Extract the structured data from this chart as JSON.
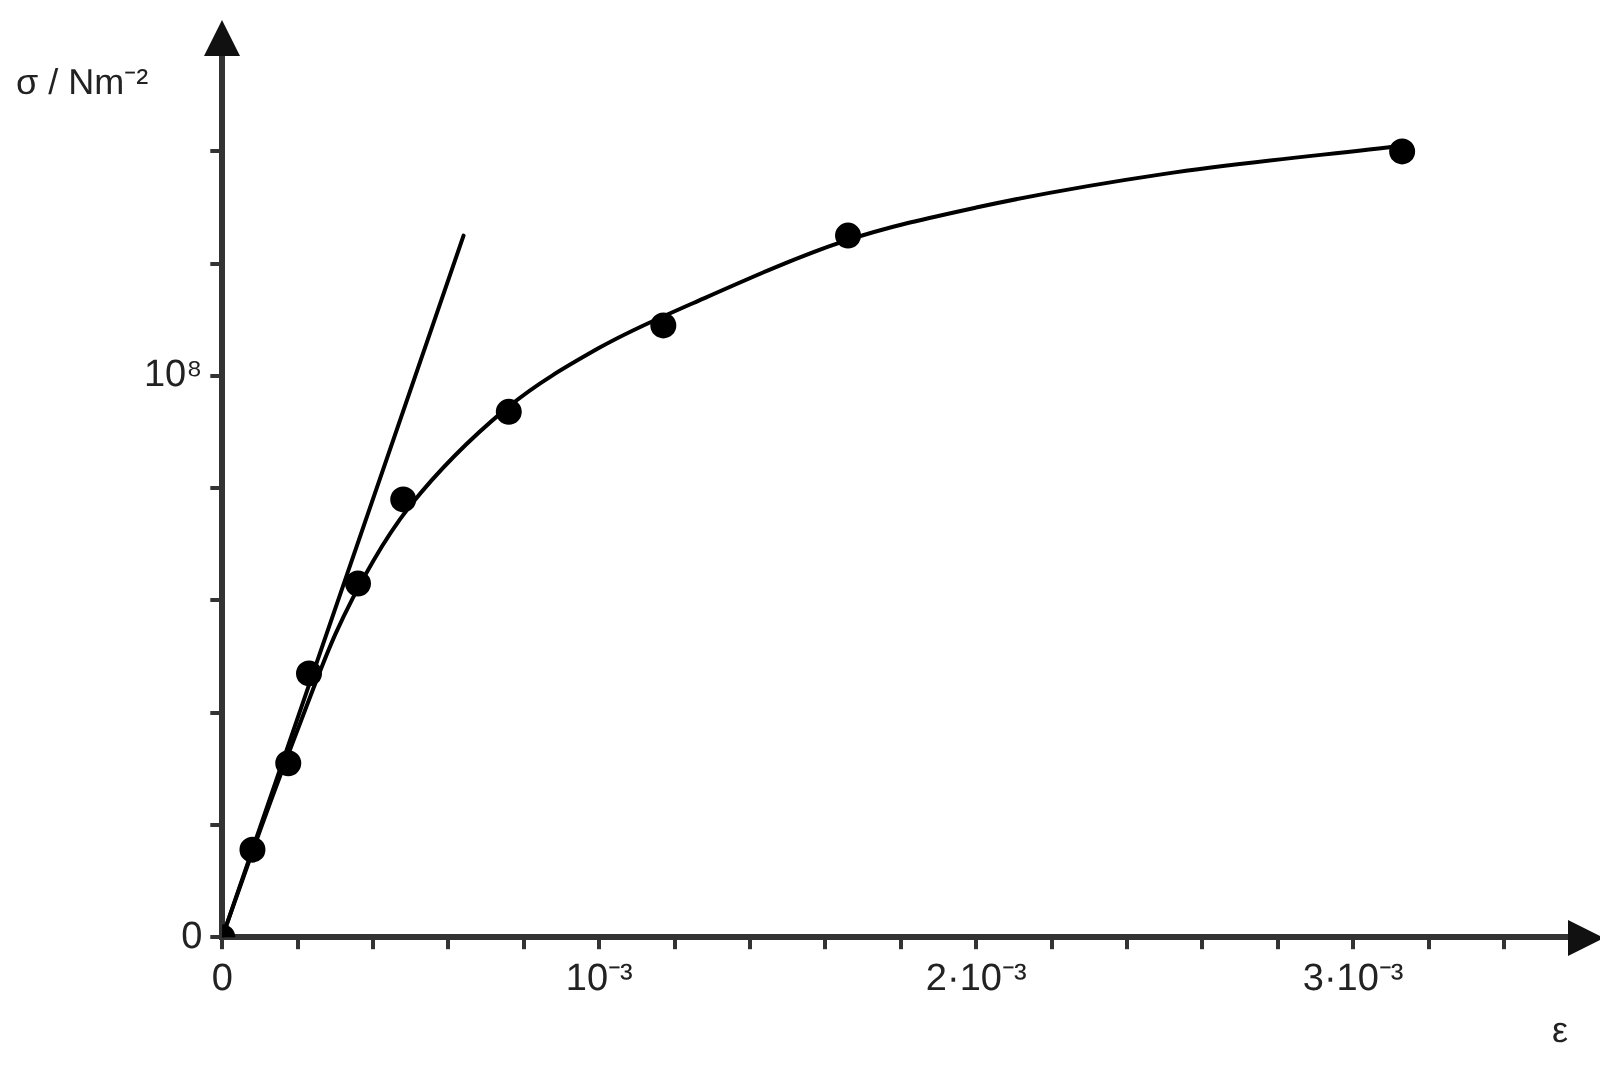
{
  "chart_data": {
    "type": "scatter",
    "xlabel": "ε",
    "ylabel": "σ / Nm⁻²",
    "xlim": [
      0,
      0.00357
    ],
    "ylim": [
      0,
      157000000
    ],
    "xticks": [
      0,
      {
        "value": 0.0002,
        "label": null
      },
      {
        "value": 0.0004,
        "label": null
      },
      {
        "value": 0.0006,
        "label": null
      },
      {
        "value": 0.0008,
        "label": null
      },
      {
        "value": 0.001,
        "label": "10⁻³"
      },
      {
        "value": 0.0012,
        "label": null
      },
      {
        "value": 0.0014,
        "label": null
      },
      {
        "value": 0.0016,
        "label": null
      },
      {
        "value": 0.0018,
        "label": null
      },
      {
        "value": 0.002,
        "label": "2·10⁻³"
      },
      {
        "value": 0.0022,
        "label": null
      },
      {
        "value": 0.0024,
        "label": null
      },
      {
        "value": 0.0026,
        "label": null
      },
      {
        "value": 0.0028,
        "label": null
      },
      {
        "value": 0.003,
        "label": "3·10⁻³"
      },
      {
        "value": 0.0032,
        "label": null
      },
      {
        "value": 0.0034,
        "label": null
      }
    ],
    "yticks": [
      0,
      {
        "value": 20000000,
        "label": null
      },
      {
        "value": 40000000,
        "label": null
      },
      {
        "value": 60000000,
        "label": null
      },
      {
        "value": 80000000,
        "label": null
      },
      {
        "value": 100000000,
        "label": "10⁸"
      },
      {
        "value": 120000000,
        "label": null
      },
      {
        "value": 140000000,
        "label": null
      }
    ],
    "grid": false,
    "legend": false,
    "marker": "circle",
    "series": [
      {
        "type": "line",
        "marker": "none",
        "color": "#000000",
        "x": [
          0,
          0.0001,
          0.0002,
          0.0003,
          0.0004,
          0.0005,
          0.00075,
          0.001,
          0.00125,
          0.00165,
          0.002,
          0.0025,
          0.00313
        ],
        "values": [
          0,
          19000000,
          37000000,
          54000000,
          67000000,
          77000000,
          94000000,
          105000000,
          113000000,
          124000000,
          130000000,
          136000000,
          141000000
        ]
      },
      {
        "type": "line",
        "marker": "none",
        "color": "#000000",
        "x": [
          0,
          0.00064
        ],
        "values": [
          0,
          125000000
        ]
      },
      {
        "color": "#000000",
        "x": [
          0,
          8e-05,
          0.000175,
          0.00023,
          0.00036,
          0.00048,
          0.00076,
          0.00117,
          0.00166,
          0.00313
        ],
        "values": [
          0,
          15600000,
          31000000,
          47000000,
          63000000,
          78000000,
          93600000,
          109000000,
          125000000,
          140000000
        ]
      }
    ]
  }
}
